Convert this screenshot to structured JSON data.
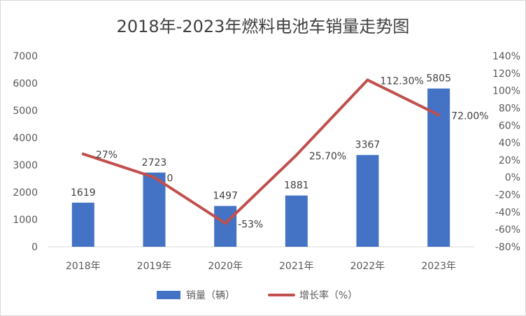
{
  "chart_data": {
    "type": "bar+line",
    "title": "2018年-2023年燃料电池车销量走势图",
    "categories": [
      "2018年",
      "2019年",
      "2020年",
      "2021年",
      "2022年",
      "2023年"
    ],
    "series": [
      {
        "name": "销量（辆）",
        "type": "bar",
        "axis": "left",
        "values": [
          1619,
          2723,
          1497,
          1881,
          3367,
          5805
        ],
        "data_labels": [
          "1619",
          "2723",
          "1497",
          "1881",
          "3367",
          "5805"
        ],
        "color": "#4472C4"
      },
      {
        "name": "增长率（%）",
        "type": "line",
        "axis": "right",
        "values": [
          27,
          0,
          -53,
          25.7,
          112.3,
          72
        ],
        "data_labels": [
          "27%",
          "0",
          "-53%",
          "25.70%",
          "112.30%",
          "72.00%"
        ],
        "color": "#C0504D"
      }
    ],
    "y_left": {
      "range": [
        0,
        7000
      ],
      "ticks": [
        0,
        1000,
        2000,
        3000,
        4000,
        5000,
        6000,
        7000
      ],
      "tick_labels": [
        "0",
        "1000",
        "2000",
        "3000",
        "4000",
        "5000",
        "6000",
        "7000"
      ]
    },
    "y_right": {
      "range": [
        -80,
        140
      ],
      "ticks": [
        -80,
        -60,
        -40,
        -20,
        0,
        20,
        40,
        60,
        80,
        100,
        120,
        140
      ],
      "tick_labels": [
        "-80%",
        "-60%",
        "-40%",
        "-20%",
        "0%",
        "20%",
        "40%",
        "60%",
        "80%",
        "100%",
        "120%",
        "140%"
      ]
    },
    "grid": false,
    "legend_position": "bottom",
    "frame_color": "#D9D9D9"
  }
}
